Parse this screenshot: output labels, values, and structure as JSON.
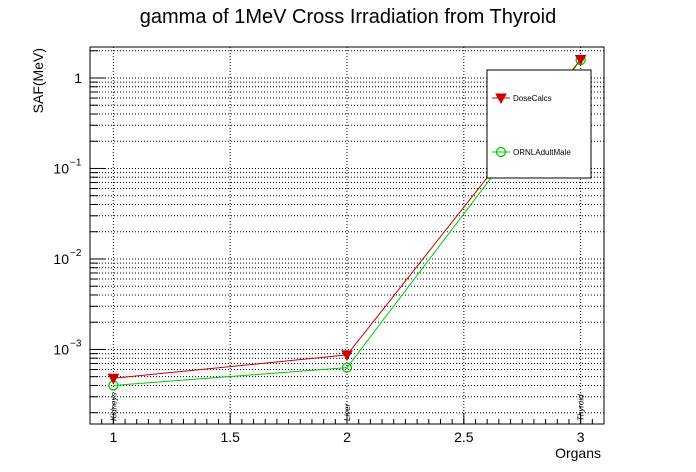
{
  "chart_data": {
    "type": "line",
    "title": "gamma of 1MeV Cross Irradiation from Thyroid",
    "xlabel": "Organs",
    "ylabel": "SAF(MeV)",
    "xlim": [
      0.9,
      3.1
    ],
    "ylim": [
      0.00015,
      2.2
    ],
    "log_y": true,
    "grid": true,
    "legend_position": "top-right",
    "x_ticks": [
      {
        "value": 1,
        "label": "1"
      },
      {
        "value": 1.5,
        "label": "1.5"
      },
      {
        "value": 2,
        "label": "2"
      },
      {
        "value": 2.5,
        "label": "2.5"
      },
      {
        "value": 3,
        "label": "3"
      }
    ],
    "y_ticks": [
      {
        "value": 0.001,
        "base": "10",
        "exp": "−3"
      },
      {
        "value": 0.01,
        "base": "10",
        "exp": "−2"
      },
      {
        "value": 0.1,
        "base": "10",
        "exp": "−1"
      },
      {
        "value": 1,
        "base": "1",
        "exp": ""
      }
    ],
    "categories": [
      {
        "x": 1,
        "label": "Kidneys"
      },
      {
        "x": 2,
        "label": "Liver"
      },
      {
        "x": 3,
        "label": "Thyroid"
      }
    ],
    "series": [
      {
        "name": "DoseCalcs",
        "color": "#cc0000",
        "marker": "triangle-down",
        "points": [
          {
            "x": 1,
            "y": 0.00048
          },
          {
            "x": 2,
            "y": 0.00087
          },
          {
            "x": 3,
            "y": 1.6
          }
        ]
      },
      {
        "name": "ORNLAdultMale",
        "color": "#00cc00",
        "marker": "circle-open",
        "points": [
          {
            "x": 1,
            "y": 0.0004
          },
          {
            "x": 2,
            "y": 0.00063
          },
          {
            "x": 3,
            "y": 1.58
          }
        ]
      }
    ]
  }
}
